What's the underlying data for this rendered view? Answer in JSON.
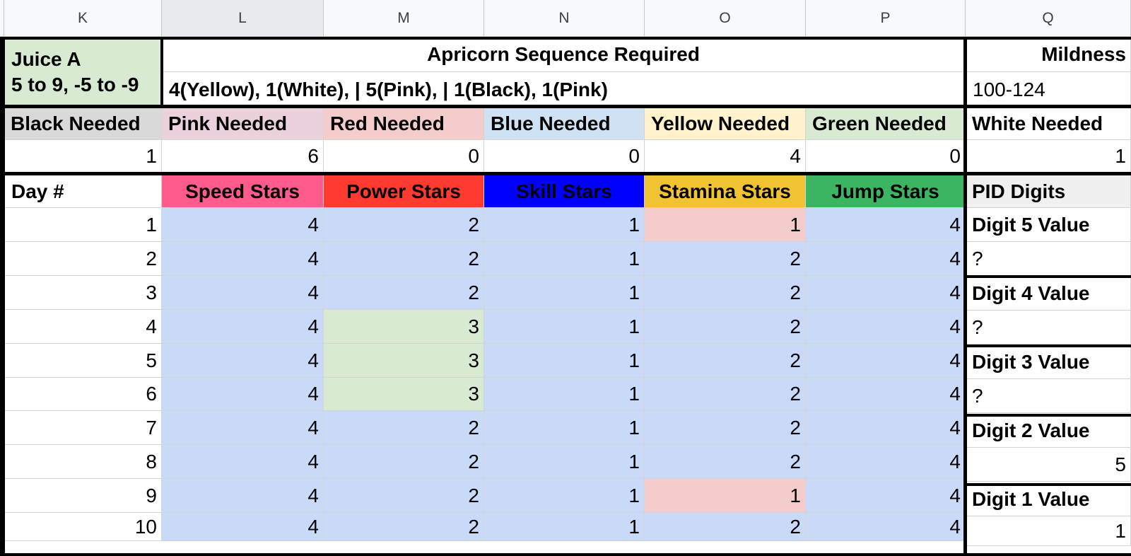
{
  "columns": [
    "K",
    "L",
    "M",
    "N",
    "O",
    "P",
    "Q"
  ],
  "header": {
    "juice_title": "Juice A",
    "juice_range": "5 to 9, -5 to -9",
    "sequence_title": "Apricorn Sequence Required",
    "sequence_value": "4(Yellow), 1(White), | 5(Pink), | 1(Black), 1(Pink)",
    "mildness_title": "Mildness",
    "mildness_value": "100-124"
  },
  "needed": {
    "labels": [
      "Black Needed",
      "Pink Needed",
      "Red Needed",
      "Blue Needed",
      "Yellow Needed",
      "Green Needed",
      "White Needed"
    ],
    "values": [
      "1",
      "6",
      "0",
      "0",
      "4",
      "0",
      "1"
    ],
    "colors": [
      "#d9d9d9",
      "#ead1dc",
      "#f4cccc",
      "#cfe2f3",
      "#fff2cc",
      "#d9ead3",
      "#ffffff"
    ]
  },
  "stats_header": {
    "day": "Day #",
    "labels": [
      "Speed Stars",
      "Power Stars",
      "Skill Stars",
      "Stamina Stars",
      "Jump Stars"
    ],
    "colors": [
      "#ff5c8d",
      "#ff3b30",
      "#0000ff",
      "#f1c232",
      "#3cb563"
    ],
    "pid": "PID Digits"
  },
  "rows": [
    {
      "day": "1",
      "vals": [
        "4",
        "2",
        "1",
        "1",
        "4"
      ]
    },
    {
      "day": "2",
      "vals": [
        "4",
        "2",
        "1",
        "2",
        "4"
      ]
    },
    {
      "day": "3",
      "vals": [
        "4",
        "2",
        "1",
        "2",
        "4"
      ]
    },
    {
      "day": "4",
      "vals": [
        "4",
        "3",
        "1",
        "2",
        "4"
      ]
    },
    {
      "day": "5",
      "vals": [
        "4",
        "3",
        "1",
        "2",
        "4"
      ]
    },
    {
      "day": "6",
      "vals": [
        "4",
        "3",
        "1",
        "2",
        "4"
      ]
    },
    {
      "day": "7",
      "vals": [
        "4",
        "2",
        "1",
        "2",
        "4"
      ]
    },
    {
      "day": "8",
      "vals": [
        "4",
        "2",
        "1",
        "2",
        "4"
      ]
    },
    {
      "day": "9",
      "vals": [
        "4",
        "2",
        "1",
        "1",
        "4"
      ]
    },
    {
      "day": "10",
      "vals": [
        "4",
        "2",
        "1",
        "2",
        "4"
      ]
    }
  ],
  "pid": [
    {
      "label": "Digit 5 Value",
      "value": "?"
    },
    {
      "label": "Digit 4 Value",
      "value": "?"
    },
    {
      "label": "Digit 3 Value",
      "value": "?"
    },
    {
      "label": "Digit 2 Value",
      "value": "5"
    },
    {
      "label": "Digit 1 Value",
      "value": "1"
    }
  ],
  "colors": {
    "cell_blue": "#c9daf8",
    "cell_green": "#d9ead3",
    "cell_red": "#f4cccc",
    "juice_bg": "#d9ead3"
  }
}
